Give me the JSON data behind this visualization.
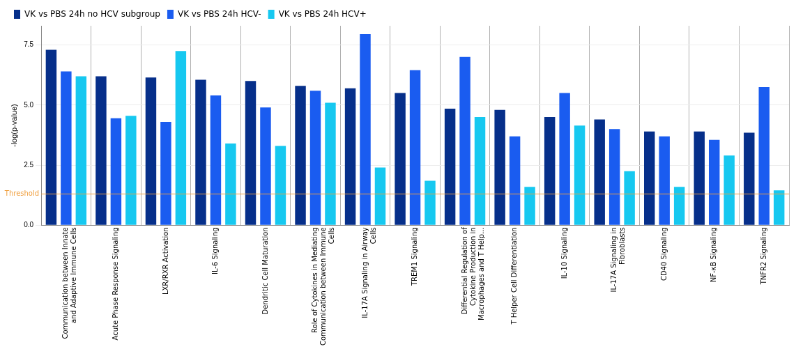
{
  "chart_data": {
    "type": "bar",
    "ylabel": "-log(p-value)",
    "categories": [
      "Communication between Innate and Adaptive Immune Cells",
      "Acute Phase Response Signaling",
      "LXR/RXR Activation",
      "IL-6 Signaling",
      "Dendritic Cell Maturation",
      "Role of Cytokines in Mediating Communication between Immune Cells",
      "IL-17A Signaling in Airway Cells",
      "TREM1 Signaling",
      "Differential Regulation of Cytokine Production in Macrophages and T Help...",
      "T Helper Cell Differentiation",
      "IL-10 Signaling",
      "IL-17A Signaling in Fibroblasts",
      "CD40 Signaling",
      "NF-κB Signaling",
      "TNFR2 Signaling"
    ],
    "series": [
      {
        "name": "VK vs PBS 24h no HCV subgroup",
        "color": "#062f8a",
        "values": [
          7.3,
          6.2,
          6.15,
          6.05,
          6.0,
          5.8,
          5.7,
          5.5,
          4.85,
          4.8,
          4.5,
          4.4,
          3.9,
          3.9,
          3.85
        ]
      },
      {
        "name": "VK vs PBS 24h HCV-",
        "color": "#1a5cf0",
        "values": [
          6.4,
          4.45,
          4.3,
          5.4,
          4.9,
          5.6,
          7.95,
          6.45,
          7.0,
          3.7,
          5.5,
          4.0,
          3.7,
          3.55,
          5.75
        ]
      },
      {
        "name": "VK vs PBS 24h HCV+",
        "color": "#16c8f0",
        "values": [
          6.2,
          4.55,
          7.25,
          3.4,
          3.3,
          5.1,
          2.4,
          1.85,
          4.5,
          1.6,
          4.15,
          2.25,
          1.6,
          2.9,
          1.45
        ]
      }
    ],
    "ylim": [
      0,
      8.3
    ],
    "yticks": [
      {
        "value": 0,
        "label": "0.0"
      },
      {
        "value": 2.5,
        "label": "2.5"
      },
      {
        "value": 5,
        "label": "5.0"
      },
      {
        "value": 7.5,
        "label": "7.5"
      }
    ],
    "ref_lines": [
      {
        "axis": "y",
        "value": 1.3,
        "label": "Threshold",
        "color": "#f0a040"
      }
    ],
    "grid": true,
    "legend": "top left"
  }
}
